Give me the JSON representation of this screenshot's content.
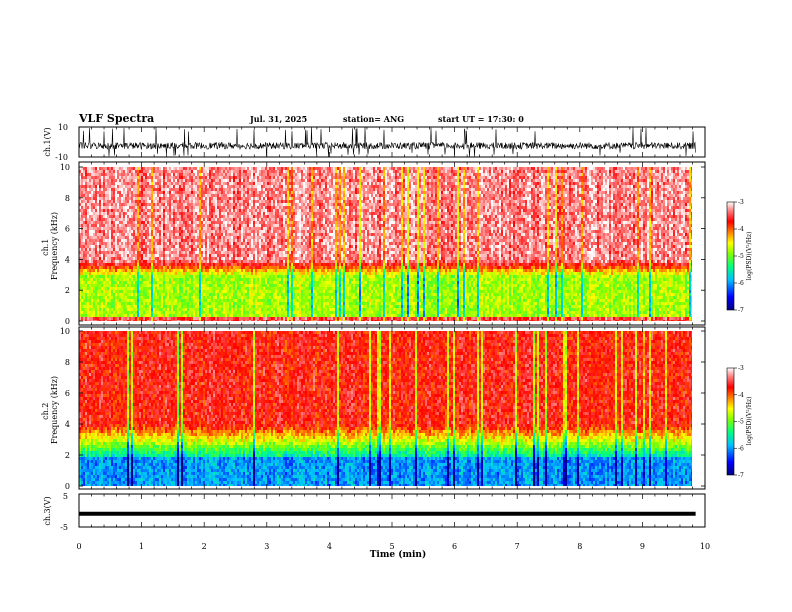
{
  "header": {
    "title": "VLF Spectra",
    "date": "Jul. 31, 2025",
    "station": "station= ANG",
    "start": "start UT =  17:30: 0"
  },
  "chart_data": [
    {
      "id": "ch1-waveform",
      "type": "line",
      "ylabel": "ch.1(V)",
      "ylim": [
        -10,
        10
      ],
      "yticks": [
        10,
        -10
      ],
      "xlim": [
        0,
        10
      ],
      "description_series": "broadband waveform, mostly between -5 and 0 V with spikes to ±10 V"
    },
    {
      "id": "ch1-spectrogram",
      "type": "heatmap",
      "ylabel": "ch.1\nFrequency (kHz)",
      "ylabel_lines": [
        "ch.1",
        "Frequency (kHz)"
      ],
      "ylim": [
        0,
        10
      ],
      "yticks": [
        0,
        2,
        4,
        6,
        8,
        10
      ],
      "xlim": [
        0,
        9.85
      ],
      "colorbar": {
        "label": "log(PSD)(V²/Hz)",
        "range": [
          -7,
          -3
        ],
        "ticks": [
          -3,
          -4,
          -5,
          -6,
          -7
        ]
      },
      "dominant_level_above_4kHz": -3.3,
      "dominant_level_below_3kHz": -4.8
    },
    {
      "id": "ch2-spectrogram",
      "type": "heatmap",
      "ylabel": "ch.2\nFrequency (kHz)",
      "ylabel_lines": [
        "ch.2",
        "Frequency (kHz)"
      ],
      "ylim": [
        0,
        10
      ],
      "yticks": [
        0,
        2,
        4,
        6,
        8,
        10
      ],
      "xlim": [
        0,
        9.85
      ],
      "colorbar": {
        "label": "log(PSD)(V²/Hz)",
        "range": [
          -7,
          -3
        ],
        "ticks": [
          -3,
          -4,
          -5,
          -6,
          -7
        ]
      },
      "dominant_level_above_4kHz": -3.7,
      "dominant_level_below_2kHz": -6.0
    },
    {
      "id": "ch3-waveform",
      "type": "line",
      "ylabel": "ch.3(V)",
      "ylim": [
        -5,
        5
      ],
      "yticks": [
        5,
        -5
      ],
      "x": [
        0,
        9.85
      ],
      "y": [
        -1,
        -1
      ],
      "xlabel": "Time (min)",
      "xlim": [
        0,
        10
      ],
      "xticks": [
        0,
        1,
        2,
        3,
        4,
        5,
        6,
        7,
        8,
        9,
        10
      ]
    }
  ],
  "colors": {
    "axis": "#000000",
    "waveform": "#000000",
    "colormap": [
      "#000080",
      "#0000ff",
      "#00c0ff",
      "#00ff80",
      "#80ff00",
      "#ffff00",
      "#ff8000",
      "#ff0000",
      "#ff8080",
      "#ffffff"
    ]
  }
}
